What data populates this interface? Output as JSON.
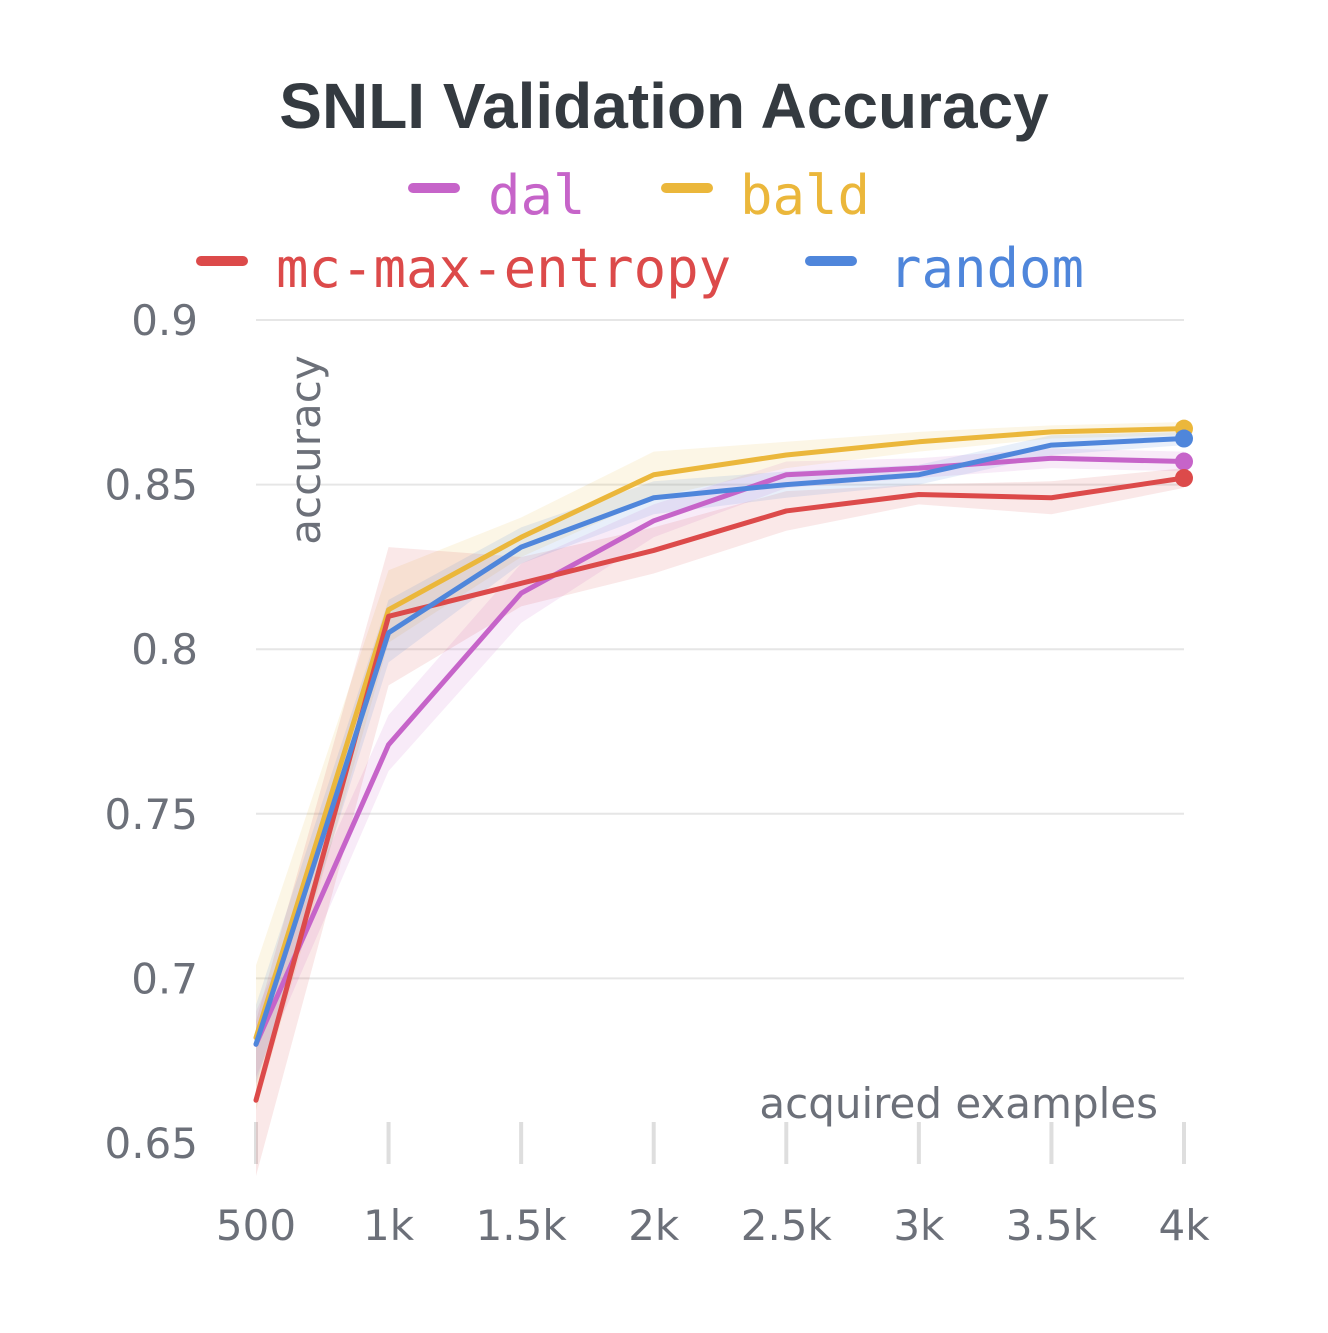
{
  "chart_data": {
    "type": "line",
    "title": "SNLI Validation Accuracy",
    "xlabel": "acquired examples",
    "ylabel": "accuracy",
    "x": [
      500,
      1000,
      1500,
      2000,
      2500,
      3000,
      3500,
      4000
    ],
    "x_tick_labels": [
      "500",
      "1k",
      "1.5k",
      "2k",
      "2.5k",
      "3k",
      "3.5k",
      "4k"
    ],
    "y_ticks": [
      0.65,
      0.7,
      0.75,
      0.8,
      0.85,
      0.9
    ],
    "y_tick_labels": [
      "0.65",
      "0.7",
      "0.75",
      "0.8",
      "0.85",
      "0.9"
    ],
    "xlim": [
      500,
      4000
    ],
    "ylim": [
      0.65,
      0.9
    ],
    "grid": true,
    "legend_position": "top",
    "series": [
      {
        "name": "dal",
        "color": "#c664c9",
        "values": [
          0.68,
          0.771,
          0.817,
          0.839,
          0.853,
          0.855,
          0.858,
          0.857
        ],
        "lower": [
          0.67,
          0.763,
          0.808,
          0.834,
          0.849,
          0.852,
          0.855,
          0.854
        ],
        "upper": [
          0.69,
          0.78,
          0.826,
          0.844,
          0.857,
          0.858,
          0.861,
          0.86
        ]
      },
      {
        "name": "bald",
        "color": "#ebb73b",
        "values": [
          0.682,
          0.812,
          0.834,
          0.853,
          0.859,
          0.863,
          0.866,
          0.867
        ],
        "lower": [
          0.66,
          0.802,
          0.828,
          0.846,
          0.855,
          0.86,
          0.864,
          0.865
        ],
        "upper": [
          0.704,
          0.824,
          0.84,
          0.86,
          0.863,
          0.866,
          0.868,
          0.869
        ]
      },
      {
        "name": "mc-max-entropy",
        "color": "#dc4a4a",
        "values": [
          0.663,
          0.81,
          0.82,
          0.83,
          0.842,
          0.847,
          0.846,
          0.852
        ],
        "lower": [
          0.64,
          0.789,
          0.813,
          0.823,
          0.836,
          0.844,
          0.841,
          0.849
        ],
        "upper": [
          0.687,
          0.831,
          0.828,
          0.837,
          0.848,
          0.85,
          0.851,
          0.855
        ]
      },
      {
        "name": "random",
        "color": "#4f86db",
        "values": [
          0.68,
          0.805,
          0.831,
          0.846,
          0.85,
          0.853,
          0.862,
          0.864
        ],
        "lower": [
          0.668,
          0.796,
          0.826,
          0.841,
          0.846,
          0.85,
          0.859,
          0.862
        ],
        "upper": [
          0.692,
          0.815,
          0.837,
          0.851,
          0.854,
          0.856,
          0.865,
          0.866
        ]
      }
    ]
  }
}
